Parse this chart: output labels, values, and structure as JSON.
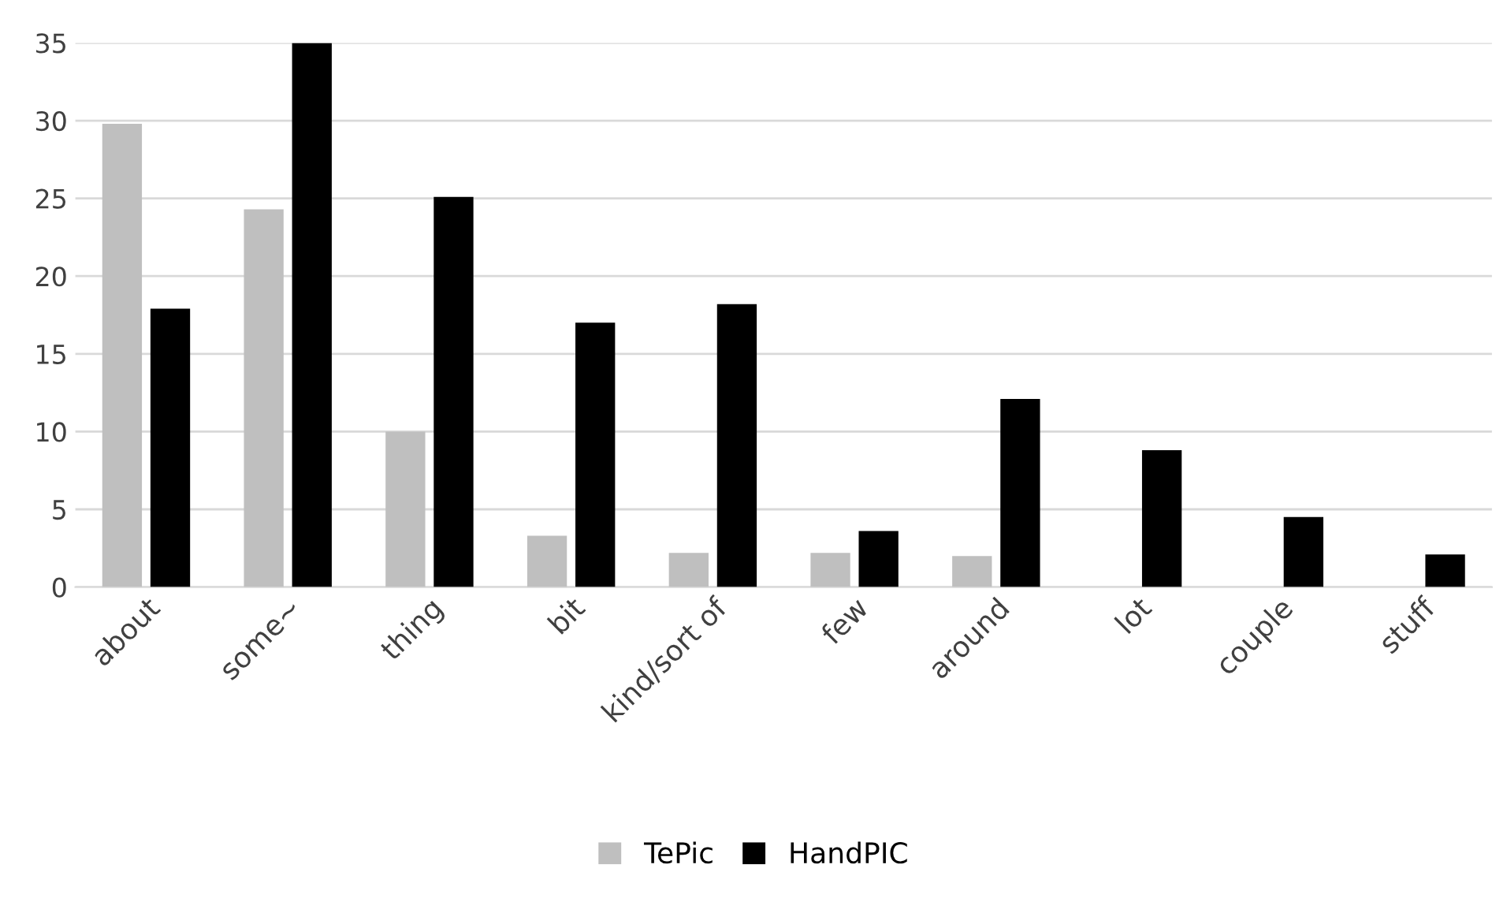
{
  "chart_data": {
    "type": "bar",
    "categories": [
      "about",
      "some~",
      "thing",
      "bit",
      "kind/sort of",
      "few",
      "around",
      "lot",
      "couple",
      "stuff"
    ],
    "series": [
      {
        "name": "TePic",
        "color": "#bfbfbf",
        "values": [
          29.8,
          24.3,
          10,
          3.3,
          2.2,
          2.2,
          2.0,
          0,
          0,
          0
        ]
      },
      {
        "name": "HandPIC",
        "color": "#000000",
        "values": [
          17.9,
          35,
          25.1,
          17,
          18.2,
          3.6,
          12.1,
          8.8,
          4.5,
          2.1
        ]
      }
    ],
    "ylim": [
      0,
      35
    ],
    "yticks": [
      0,
      5,
      10,
      15,
      20,
      25,
      30,
      35
    ],
    "grid": "y",
    "legend": "bottom"
  }
}
